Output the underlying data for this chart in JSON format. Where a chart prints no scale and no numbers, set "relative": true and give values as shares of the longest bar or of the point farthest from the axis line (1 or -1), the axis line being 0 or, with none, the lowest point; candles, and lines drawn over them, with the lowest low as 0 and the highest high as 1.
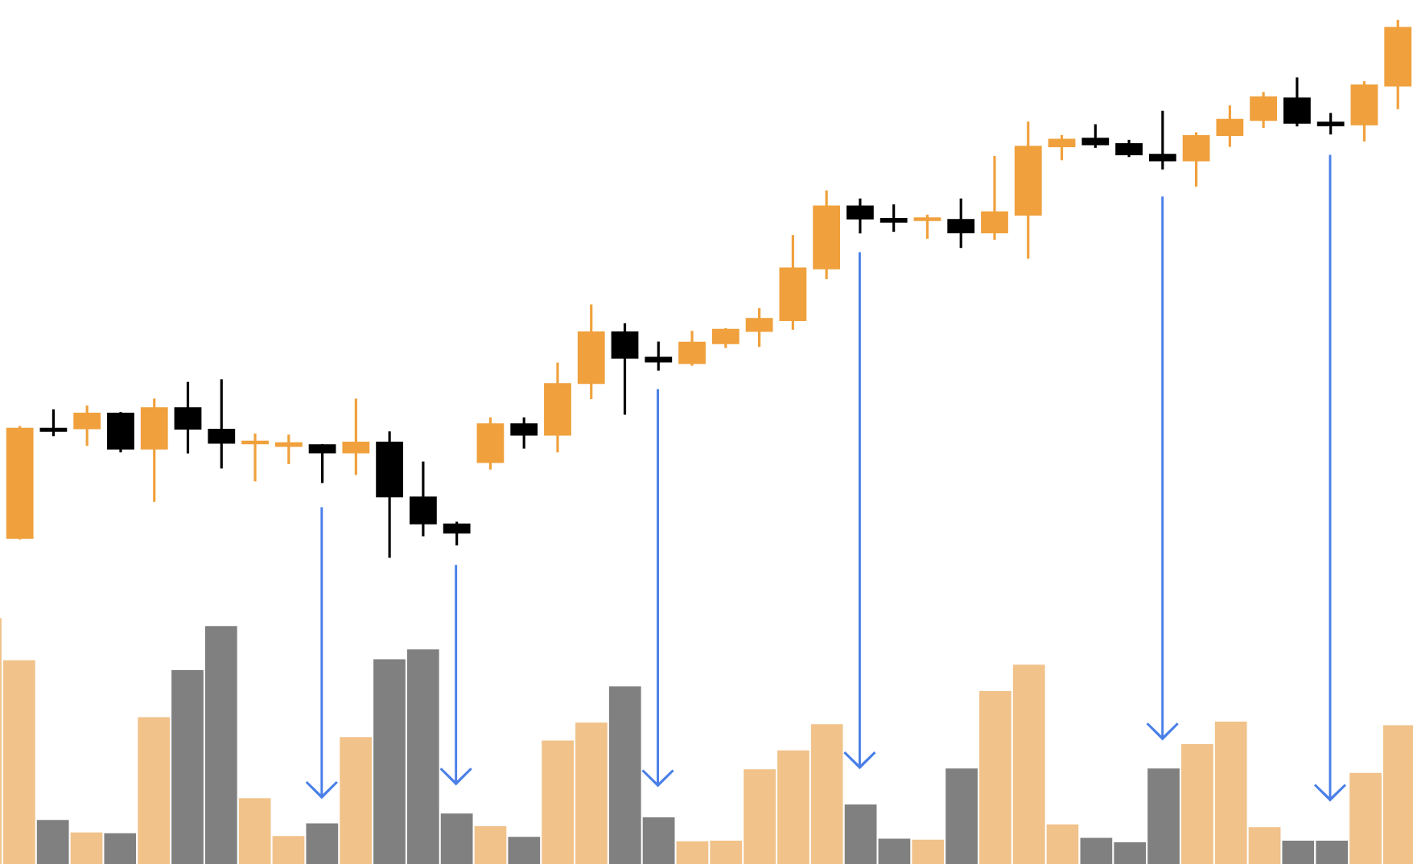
{
  "chart_data": [
    {
      "type": "candlestick",
      "relative": true,
      "categories": [
        null,
        null,
        null,
        null,
        null,
        null,
        null,
        null,
        null,
        null,
        null,
        null,
        null,
        null,
        null,
        null,
        null,
        null,
        null,
        null,
        null,
        null,
        null,
        null,
        null,
        null,
        null,
        null,
        null,
        null,
        null,
        null,
        null,
        null,
        null,
        null,
        null,
        null,
        null,
        null,
        null,
        null
      ],
      "ohlc": [
        [
          0.037,
          0.245,
          0.034,
          0.24
        ],
        [
          0.24,
          0.276,
          0.226,
          0.236
        ],
        [
          0.241,
          0.283,
          0.208,
          0.268
        ],
        [
          0.268,
          0.271,
          0.196,
          0.203
        ],
        [
          0.203,
          0.296,
          0.104,
          0.278
        ],
        [
          0.278,
          0.327,
          0.194,
          0.24
        ],
        [
          0.238,
          0.332,
          0.166,
          0.214
        ],
        [
          0.213,
          0.231,
          0.142,
          0.216
        ],
        [
          0.208,
          0.229,
          0.174,
          0.213
        ],
        [
          0.209,
          0.211,
          0.139,
          0.196
        ],
        [
          0.196,
          0.296,
          0.154,
          0.214
        ],
        [
          0.214,
          0.235,
          0.0,
          0.114
        ],
        [
          0.112,
          0.179,
          0.04,
          0.064
        ],
        [
          0.062,
          0.067,
          0.023,
          0.047
        ],
        [
          0.178,
          0.261,
          0.164,
          0.248
        ],
        [
          0.248,
          0.261,
          0.203,
          0.229
        ],
        [
          0.229,
          0.363,
          0.196,
          0.323
        ],
        [
          0.325,
          0.471,
          0.295,
          0.419
        ],
        [
          0.419,
          0.436,
          0.266,
          0.372
        ],
        [
          0.372,
          0.402,
          0.348,
          0.365
        ],
        [
          0.362,
          0.422,
          0.357,
          0.4
        ],
        [
          0.399,
          0.427,
          0.39,
          0.424
        ],
        [
          0.422,
          0.464,
          0.392,
          0.444
        ],
        [
          0.442,
          0.6,
          0.424,
          0.538
        ],
        [
          0.538,
          0.683,
          0.518,
          0.653
        ],
        [
          0.653,
          0.668,
          0.603,
          0.631
        ],
        [
          0.63,
          0.657,
          0.606,
          0.625
        ],
        [
          0.628,
          0.638,
          0.593,
          0.631
        ],
        [
          0.628,
          0.668,
          0.576,
          0.605
        ],
        [
          0.605,
          0.747,
          0.591,
          0.642
        ],
        [
          0.638,
          0.811,
          0.556,
          0.764
        ],
        [
          0.765,
          0.786,
          0.739,
          0.777
        ],
        [
          0.779,
          0.806,
          0.762,
          0.769
        ],
        [
          0.769,
          0.777,
          0.745,
          0.75
        ],
        [
          0.749,
          0.831,
          0.722,
          0.739
        ],
        [
          0.739,
          0.791,
          0.69,
          0.784
        ],
        [
          0.786,
          0.841,
          0.764,
          0.814
        ],
        [
          0.814,
          0.866,
          0.799,
          0.856
        ],
        [
          0.854,
          0.893,
          0.802,
          0.809
        ],
        [
          0.809,
          0.827,
          0.787,
          0.804
        ],
        [
          0.806,
          0.886,
          0.774,
          0.878
        ],
        [
          0.878,
          1.0,
          0.834,
          0.985
        ]
      ],
      "colors": [
        "#f0a03c",
        "#000000",
        "#f0a03c",
        "#000000",
        "#f0a03c",
        "#000000",
        "#000000",
        "#f0a03c",
        "#f0a03c",
        "#000000",
        "#f0a03c",
        "#000000",
        "#000000",
        "#000000",
        "#f0a03c",
        "#000000",
        "#f0a03c",
        "#f0a03c",
        "#000000",
        "#000000",
        "#f0a03c",
        "#f0a03c",
        "#f0a03c",
        "#f0a03c",
        "#f0a03c",
        "#000000",
        "#000000",
        "#f0a03c",
        "#000000",
        "#f0a03c",
        "#f0a03c",
        "#f0a03c",
        "#000000",
        "#000000",
        "#000000",
        "#f0a03c",
        "#f0a03c",
        "#f0a03c",
        "#000000",
        "#000000",
        "#f0a03c",
        "#f0a03c"
      ]
    },
    {
      "type": "bar",
      "relative": true,
      "categories": [
        null,
        null,
        null,
        null,
        null,
        null,
        null,
        null,
        null,
        null,
        null,
        null,
        null,
        null,
        null,
        null,
        null,
        null,
        null,
        null,
        null,
        null,
        null,
        null,
        null,
        null,
        null,
        null,
        null,
        null,
        null,
        null,
        null,
        null,
        null,
        null,
        null,
        null,
        null,
        null,
        null,
        null,
        null
      ],
      "values": [
        1.0,
        0.828,
        0.179,
        0.128,
        0.125,
        0.597,
        0.788,
        0.967,
        0.267,
        0.114,
        0.165,
        0.516,
        0.832,
        0.872,
        0.205,
        0.154,
        0.11,
        0.502,
        0.575,
        0.722,
        0.19,
        0.092,
        0.095,
        0.385,
        0.462,
        0.568,
        0.242,
        0.103,
        0.099,
        0.388,
        0.703,
        0.81,
        0.161,
        0.106,
        0.088,
        0.388,
        0.487,
        0.579,
        0.15,
        0.095,
        0.095,
        0.37,
        0.564
      ],
      "colors": [
        "#f1c28a",
        "#f1c28a",
        "#808080",
        "#f1c28a",
        "#808080",
        "#f1c28a",
        "#808080",
        "#808080",
        "#f1c28a",
        "#f1c28a",
        "#808080",
        "#f1c28a",
        "#808080",
        "#808080",
        "#808080",
        "#f1c28a",
        "#808080",
        "#f1c28a",
        "#f1c28a",
        "#808080",
        "#808080",
        "#f1c28a",
        "#f1c28a",
        "#f1c28a",
        "#f1c28a",
        "#f1c28a",
        "#808080",
        "#808080",
        "#f1c28a",
        "#808080",
        "#f1c28a",
        "#f1c28a",
        "#f1c28a",
        "#808080",
        "#808080",
        "#808080",
        "#f1c28a",
        "#f1c28a",
        "#f1c28a",
        "#808080",
        "#808080",
        "#f1c28a",
        "#f1c28a"
      ]
    }
  ]
}
